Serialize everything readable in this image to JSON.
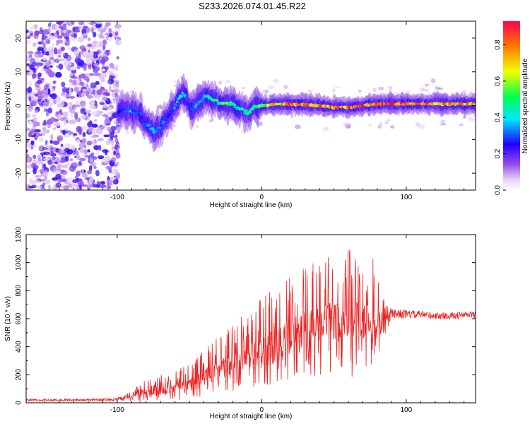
{
  "figure_title": "S233.2026.074.01.45.R22",
  "chart_data": [
    {
      "type": "heatmap",
      "panel": "top",
      "title": "S233.2026.074.01.45.R22",
      "xlabel": "Height of straight line (km)",
      "ylabel": "Frequency (Hz)",
      "xlim": [
        -163,
        148
      ],
      "ylim": [
        -25,
        25
      ],
      "x_ticks": [
        -100,
        0,
        100
      ],
      "y_ticks": [
        -20,
        -10,
        0,
        10,
        20
      ],
      "colorbar": {
        "label": "Normalized spectral amplitude",
        "range": [
          0,
          0.93
        ],
        "ticks": [
          0.0,
          0.2,
          0.4,
          0.6,
          0.8
        ],
        "colormap": [
          "#ffffff",
          "#e7d6f6",
          "#9a4ee8",
          "#2200ff",
          "#00e5ff",
          "#00ff55",
          "#f0ff00",
          "#ff7a00",
          "#ff0050"
        ]
      },
      "noise_region_x": [
        -163,
        -99
      ],
      "signal_centerline": {
        "x": [
          -99,
          -90,
          -84,
          -80,
          -75,
          -70,
          -66,
          -62,
          -58,
          -55,
          -52,
          -48,
          -45,
          -42,
          -38,
          -35,
          -30,
          -25,
          -20,
          -15,
          -10,
          -5,
          0,
          10,
          20,
          30,
          40,
          50,
          60,
          70,
          80,
          90,
          100,
          120,
          148
        ],
        "freq": [
          -1.5,
          -1.5,
          -2.5,
          -5.5,
          -7.5,
          -6.5,
          -4,
          -1.5,
          1.5,
          3.5,
          2,
          -1.5,
          0,
          1.5,
          3.5,
          2,
          1,
          0.8,
          0.5,
          -1,
          -2,
          -0.5,
          0,
          0.5,
          0.5,
          0.2,
          0,
          -0.5,
          -0.5,
          0,
          0.5,
          0.5,
          0.5,
          0.5,
          0.5
        ],
        "amplitude": [
          0.3,
          0.35,
          0.3,
          0.3,
          0.4,
          0.38,
          0.3,
          0.3,
          0.38,
          0.4,
          0.35,
          0.3,
          0.38,
          0.42,
          0.45,
          0.5,
          0.5,
          0.6,
          0.5,
          0.45,
          0.5,
          0.55,
          0.6,
          0.8,
          0.85,
          0.82,
          0.85,
          0.8,
          0.85,
          0.9,
          0.9,
          0.88,
          0.85,
          0.8,
          0.78
        ]
      }
    },
    {
      "type": "line",
      "panel": "bottom",
      "xlabel": "Height of straight line (km)",
      "ylabel": "SNR (10 * v/v)",
      "xlim": [
        -163,
        148
      ],
      "ylim": [
        0,
        1200
      ],
      "x_ticks": [
        -100,
        0,
        100
      ],
      "y_ticks": [
        0,
        200,
        400,
        600,
        800,
        1000,
        1200
      ],
      "line_color": "#ee2222",
      "series": [
        {
          "name": "SNR",
          "x": [
            -163,
            -140,
            -120,
            -100,
            -90,
            -86,
            -80,
            -70,
            -60,
            -50,
            -40,
            -30,
            -20,
            -10,
            0,
            10,
            20,
            30,
            40,
            50,
            60,
            70,
            80,
            85,
            90,
            100,
            110,
            120,
            130,
            148
          ],
          "mean": [
            20,
            20,
            20,
            25,
            40,
            70,
            80,
            90,
            110,
            140,
            190,
            230,
            280,
            330,
            380,
            430,
            470,
            520,
            560,
            580,
            600,
            590,
            560,
            580,
            640,
            630,
            630,
            620,
            620,
            630
          ],
          "spread": [
            8,
            8,
            8,
            12,
            30,
            60,
            60,
            70,
            80,
            90,
            120,
            150,
            180,
            200,
            230,
            250,
            270,
            300,
            320,
            330,
            350,
            330,
            280,
            120,
            35,
            30,
            25,
            25,
            25,
            25
          ]
        }
      ]
    }
  ]
}
